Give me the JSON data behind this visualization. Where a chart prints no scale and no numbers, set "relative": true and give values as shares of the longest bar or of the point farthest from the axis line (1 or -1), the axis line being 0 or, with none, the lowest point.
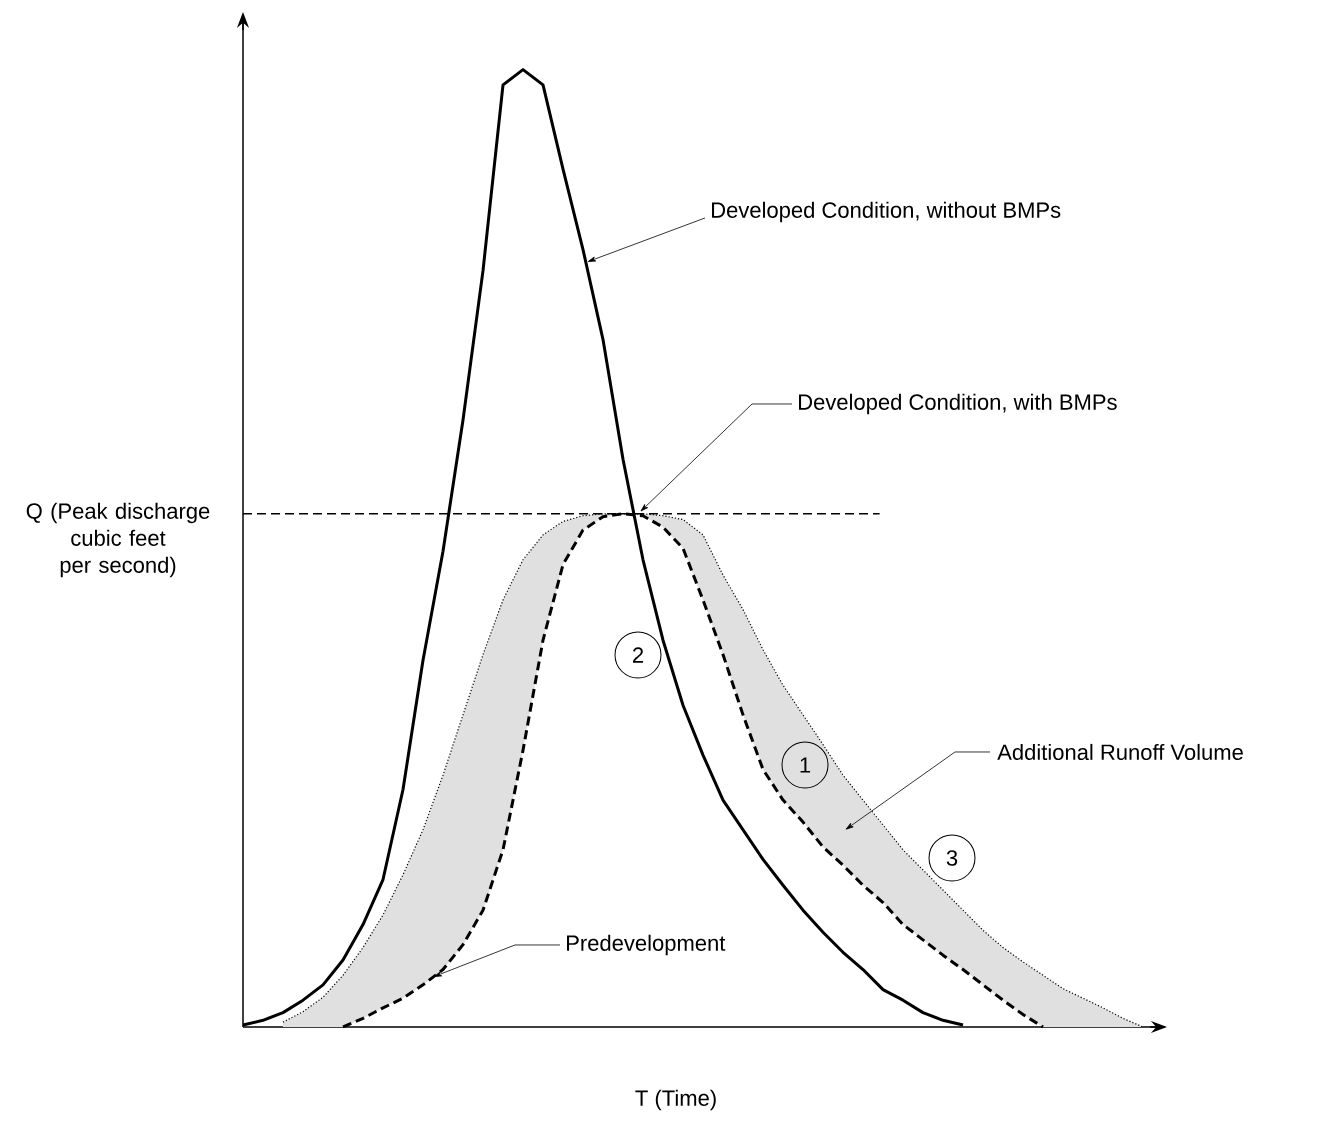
{
  "chart_data": {
    "type": "line",
    "relative": true,
    "xlabel": "T  (Time)",
    "ylabel": "Q (Peak discharge cubic feet per second)",
    "categories": [
      null,
      null,
      null,
      null,
      null,
      null,
      null,
      null,
      null,
      null,
      null,
      null,
      null,
      null,
      null,
      null,
      null,
      null,
      null,
      null,
      null,
      null,
      null,
      null,
      null,
      null,
      null,
      null,
      null,
      null,
      null,
      null,
      null,
      null,
      null,
      null,
      null,
      null,
      null,
      null,
      null,
      null,
      null,
      null,
      null,
      null
    ],
    "series": [
      {
        "color": "#000000",
        "line_style": "solid",
        "values": [
          0.002,
          0.007,
          0.015,
          0.028,
          0.044,
          0.07,
          0.107,
          0.154,
          0.248,
          0.383,
          0.497,
          0.634,
          0.79,
          0.984,
          1.0,
          0.984,
          0.896,
          0.812,
          0.718,
          0.593,
          0.488,
          0.404,
          0.336,
          0.284,
          0.237,
          0.206,
          0.175,
          0.148,
          0.122,
          0.099,
          0.078,
          0.06,
          0.039,
          0.028,
          0.015,
          0.007,
          0.002,
          null,
          null,
          null,
          null,
          null,
          null,
          null,
          null,
          null
        ]
      },
      {
        "name": "Developed Condition, with BMPs",
        "color": "#000000",
        "line_style": "dotted",
        "values": [
          null,
          null,
          0.005,
          0.016,
          0.031,
          0.054,
          0.083,
          0.117,
          0.159,
          0.206,
          0.263,
          0.326,
          0.389,
          0.446,
          0.488,
          0.514,
          0.528,
          0.534,
          0.536,
          0.536,
          0.536,
          0.534,
          0.53,
          0.514,
          0.472,
          0.436,
          0.394,
          0.357,
          0.326,
          0.295,
          0.263,
          0.237,
          0.211,
          0.185,
          0.164,
          0.143,
          0.122,
          0.101,
          0.083,
          0.068,
          0.054,
          0.04,
          0.03,
          0.02,
          0.009,
          0
        ],
        "lower": [
          null,
          null,
          0,
          0,
          0,
          0,
          0.009,
          0.02,
          0.03,
          0.044,
          0.06,
          0.086,
          0.122,
          0.185,
          0.289,
          0.404,
          0.483,
          0.519,
          0.533,
          0.536,
          0.534,
          0.522,
          0.5,
          0.446,
          0.389,
          0.326,
          0.269,
          0.237,
          0.214,
          0.188,
          0.169,
          0.148,
          0.13,
          0.107,
          0.091,
          0.075,
          0.06,
          0.044,
          0.028,
          0.013,
          0,
          0,
          0,
          0,
          0,
          0
        ],
        "upper": [
          null,
          null,
          0.005,
          0.016,
          0.031,
          0.054,
          0.083,
          0.117,
          0.159,
          0.206,
          0.263,
          0.326,
          0.389,
          0.446,
          0.488,
          0.514,
          0.528,
          0.534,
          0.536,
          0.536,
          0.536,
          0.534,
          0.53,
          0.514,
          0.472,
          0.436,
          0.394,
          0.357,
          0.326,
          0.295,
          0.263,
          0.237,
          0.211,
          0.185,
          0.164,
          0.143,
          0.122,
          0.101,
          0.083,
          0.068,
          0.054,
          0.04,
          0.03,
          0.02,
          0.009,
          0
        ]
      },
      {
        "color": "#000000",
        "line_style": "dashed",
        "values": [
          null,
          null,
          null,
          null,
          null,
          0,
          0.009,
          0.02,
          0.03,
          0.044,
          0.06,
          0.086,
          0.122,
          0.185,
          0.289,
          0.404,
          0.483,
          0.519,
          0.533,
          0.536,
          0.534,
          0.522,
          0.5,
          0.446,
          0.389,
          0.326,
          0.269,
          0.237,
          0.214,
          0.188,
          0.169,
          0.148,
          0.13,
          0.107,
          0.091,
          0.075,
          0.06,
          0.044,
          0.028,
          0.013,
          0,
          null,
          null,
          null,
          null,
          null
        ]
      }
    ],
    "ref_lines": [
      {
        "axis": "y",
        "value": 0.536,
        "line_style": "dashed"
      }
    ],
    "annotations": [
      "Additional Runoff Volume",
      "1",
      "2",
      "3",
      "Developed Condition, without BMPs",
      "Predevelopment"
    ]
  }
}
